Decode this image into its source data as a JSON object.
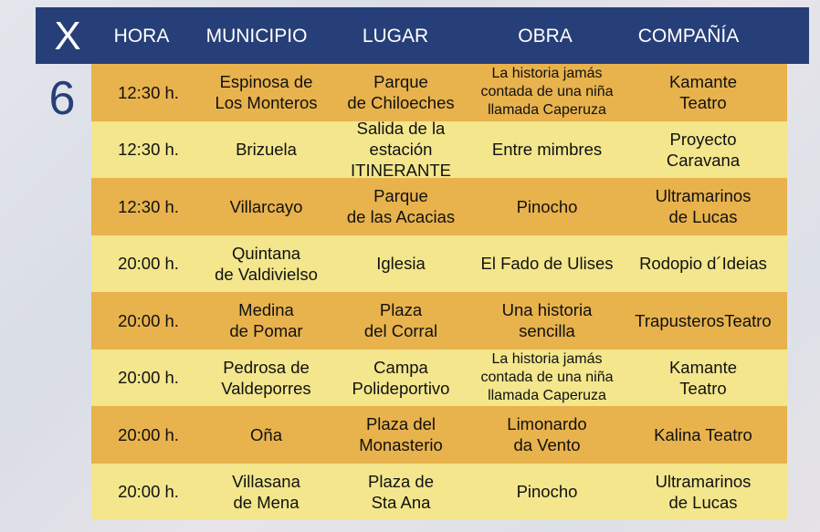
{
  "header": {
    "day_name": "X",
    "columns": [
      "HORA",
      "MUNICIPIO",
      "LUGAR",
      "OBRA",
      "COMPAÑÍA"
    ]
  },
  "day_number": "6",
  "colors": {
    "header": "#263f78",
    "row_odd": "#e8b24d",
    "row_even": "#f3e68c"
  },
  "rows": [
    {
      "hora": "12:30 h.",
      "municipio": "Espinosa de\nLos Monteros",
      "lugar": "Parque\nde Chiloeches",
      "obra": "La historia jamás\ncontada de una niña\nllamada Caperuza",
      "compania": "Kamante\nTeatro"
    },
    {
      "hora": "12:30 h.",
      "municipio": "Brizuela",
      "lugar": "Salida de la estación\nITINERANTE",
      "obra": "Entre mimbres",
      "compania": "Proyecto\nCaravana"
    },
    {
      "hora": "12:30 h.",
      "municipio": "Villarcayo",
      "lugar": "Parque\nde las Acacias",
      "obra": "Pinocho",
      "compania": "Ultramarinos\nde Lucas"
    },
    {
      "hora": "20:00 h.",
      "municipio": "Quintana\nde Valdivielso",
      "lugar": "Iglesia",
      "obra": "El Fado de Ulises",
      "compania": "Rodopio d´Ideias"
    },
    {
      "hora": "20:00 h.",
      "municipio": "Medina\nde Pomar",
      "lugar": "Plaza\ndel Corral",
      "obra": "Una historia\nsencilla",
      "compania": "TrapusterosTeatro"
    },
    {
      "hora": "20:00 h.",
      "municipio": "Pedrosa de\nValdeporres",
      "lugar": "Campa\nPolideportivo",
      "obra": "La historia jamás\ncontada de una niña\nllamada Caperuza",
      "compania": "Kamante\nTeatro"
    },
    {
      "hora": "20:00 h.",
      "municipio": "Oña",
      "lugar": "Plaza del\nMonasterio",
      "obra": "Limonardo\nda Vento",
      "compania": "Kalina Teatro"
    },
    {
      "hora": "20:00 h.",
      "municipio": "Villasana\nde Mena",
      "lugar": "Plaza de\nSta Ana",
      "obra": "Pinocho",
      "compania": "Ultramarinos\nde Lucas"
    }
  ]
}
